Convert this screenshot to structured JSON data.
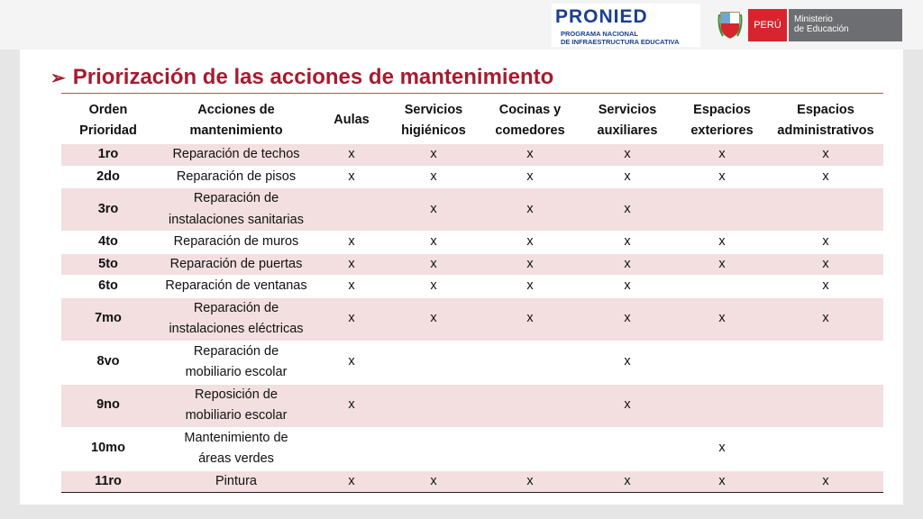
{
  "header": {
    "logo": "PRONIED",
    "logo_line1": "PROGRAMA NACIONAL",
    "logo_line2": "DE INFRAESTRUCTURA EDUCATIVA",
    "country": "PERÚ",
    "ministry_line1": "Ministerio",
    "ministry_line2": "de Educación"
  },
  "title": "Priorización de las acciones de mantenimiento",
  "table": {
    "columns": [
      "Orden\nPrioridad",
      "Acciones de\nmantenimiento",
      "Aulas",
      "Servicios\nhigiénicos",
      "Cocinas y\ncomedores",
      "Servicios\nauxiliares",
      "Espacios\nexteriores",
      "Espacios\nadministrativos"
    ],
    "rows": [
      [
        "1ro",
        "Reparación de techos",
        "x",
        "x",
        "x",
        "x",
        "x",
        "x"
      ],
      [
        "2do",
        "Reparación de pisos",
        "x",
        "x",
        "x",
        "x",
        "x",
        "x"
      ],
      [
        "3ro",
        "Reparación de\ninstalaciones sanitarias",
        null,
        "x",
        "x",
        "x",
        null,
        null
      ],
      [
        "4to",
        "Reparación de muros",
        "x",
        "x",
        "x",
        "x",
        "x",
        "x"
      ],
      [
        "5to",
        "Reparación de puertas",
        "x",
        "x",
        "x",
        "x",
        "x",
        "x"
      ],
      [
        "6to",
        "Reparación de ventanas",
        "x",
        "x",
        "x",
        "x",
        null,
        "x"
      ],
      [
        "7mo",
        "Reparación de\ninstalaciones eléctricas",
        "x",
        "x",
        "x",
        "x",
        "x",
        "x"
      ],
      [
        "8vo",
        "Reparación de\nmobiliario escolar",
        "x",
        null,
        null,
        "x",
        null,
        null
      ],
      [
        "9no",
        "Reposición de\nmobiliario escolar",
        "x",
        null,
        null,
        "x",
        null,
        null
      ],
      [
        "10mo",
        "Mantenimiento de\náreas verdes",
        null,
        null,
        null,
        null,
        "x",
        null
      ],
      [
        "11ro",
        "Pintura",
        "x",
        "x",
        "x",
        "x",
        "x",
        "x"
      ]
    ]
  }
}
